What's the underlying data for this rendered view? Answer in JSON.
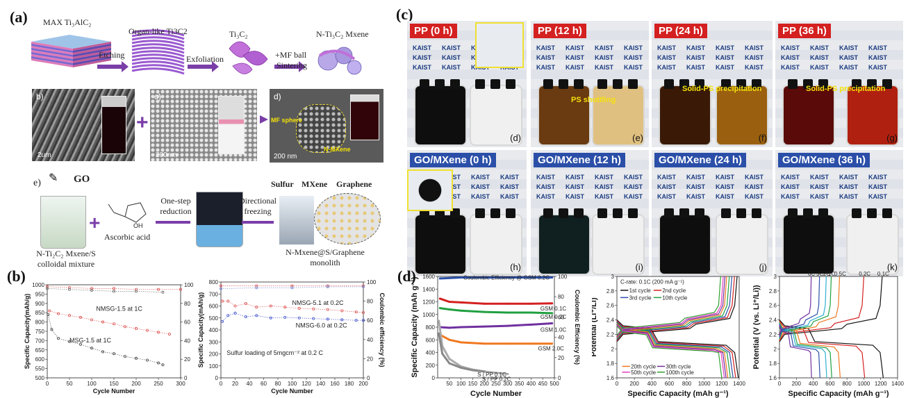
{
  "panel_labels": {
    "a": "(a)",
    "b": "(b)",
    "c": "(c)",
    "d": "(d)"
  },
  "a": {
    "steps": [
      "MAX Ti₃AlC₂",
      "Organ-like  Ti3C2",
      "Ti₃C₂",
      "N-Ti₃C₂ Mxene"
    ],
    "arrows": [
      "Etching",
      "Exfoliation",
      "+MF ball",
      "Sintering"
    ],
    "sem_labels": [
      "b)",
      "c)",
      "d)"
    ],
    "scales": [
      "2um",
      "200nm",
      "200 nm"
    ],
    "d_ann": [
      "MF sphere",
      "N-MXene"
    ],
    "e_label": "e)",
    "go": "GO",
    "legend": [
      "Sulfur",
      "MXene",
      "Graphene"
    ],
    "bottom": [
      "N-Ti₂C₂ Mxene/S colloidal mixture",
      "Ascorbic acid",
      "One-step reduction",
      "Directional freezing",
      "N-Mxene@S/Graphene monolith"
    ]
  },
  "c": {
    "top_tags": [
      "PP (0 h)",
      "PP (12 h)",
      "PP (24 h)",
      "PP (36 h)"
    ],
    "bot_tags": [
      "GO/MXene (0 h)",
      "GO/MXene (12 h)",
      "GO/MXene (24 h)",
      "GO/MXene (36 h)"
    ],
    "sub_top": [
      "(d)",
      "(e)",
      "(f)",
      "(g)"
    ],
    "sub_bot": [
      "(h)",
      "(i)",
      "(j)",
      "(k)"
    ],
    "annotations": [
      "PS shuttling",
      "Solid-PS precipitation",
      "Solid-PS precipitation"
    ],
    "kaist": "KAIST"
  },
  "chart_data": [
    {
      "id": "b-left",
      "type": "scatter",
      "xlabel": "Cycle Number",
      "ylabel": "Specific Capacity(mAh/g)",
      "y2label": "Coulombic efficiency",
      "xlim": [
        0,
        300
      ],
      "ylim": [
        500,
        1000
      ],
      "y2lim": [
        0,
        100
      ],
      "xticks": [
        0,
        50,
        100,
        150,
        200,
        250,
        300
      ],
      "yticks": [
        500,
        550,
        600,
        650,
        700,
        750,
        800,
        850,
        900,
        950,
        1000
      ],
      "y2ticks": [
        0,
        20,
        40,
        60,
        80,
        100
      ],
      "series": [
        {
          "name": "NMSG-1.5 at 1C",
          "color": "#e06060",
          "x": [
            5,
            25,
            50,
            75,
            100,
            125,
            150,
            175,
            200,
            225,
            250,
            275
          ],
          "y": [
            860,
            845,
            835,
            825,
            812,
            800,
            790,
            775,
            765,
            755,
            745,
            735
          ]
        },
        {
          "name": "MSG-1.5 at 1C",
          "color": "#555555",
          "x": [
            2,
            10,
            25,
            50,
            75,
            100,
            125,
            150,
            175,
            200,
            225,
            250,
            260
          ],
          "y": [
            840,
            760,
            712,
            695,
            680,
            660,
            640,
            630,
            615,
            605,
            595,
            580,
            570
          ]
        },
        {
          "name": "",
          "color": "#e06060",
          "x": [
            0,
            50,
            100,
            150,
            200,
            250,
            300
          ],
          "y": [
            98,
            97,
            96,
            96,
            95,
            95,
            95
          ]
        },
        {
          "name": "",
          "color": "#777777",
          "x": [
            0,
            50,
            100,
            150,
            200,
            260
          ],
          "y": [
            96,
            95,
            94,
            93,
            93,
            92
          ]
        }
      ]
    },
    {
      "id": "b-right",
      "type": "scatter",
      "xlabel": "Cycle Number",
      "ylabel": "Specific Capacity(mAh/g)",
      "y2label": "Coulombic efficiency (%)",
      "annotation": "Sulfur loading of 5mgcm⁻² at 0.2 C",
      "xlim": [
        0,
        200
      ],
      "ylim": [
        0,
        800
      ],
      "y2lim": [
        0,
        100
      ],
      "xticks": [
        0,
        20,
        40,
        60,
        80,
        100,
        120,
        140,
        160,
        180,
        200
      ],
      "yticks": [
        0,
        100,
        200,
        300,
        400,
        500,
        600,
        700,
        800
      ],
      "y2ticks": [
        0,
        20,
        40,
        60,
        80,
        100
      ],
      "series": [
        {
          "name": "NMSG-5.1 at 0.2C",
          "color": "#e06060",
          "x": [
            2,
            10,
            20,
            35,
            50,
            70,
            90,
            110,
            130,
            150,
            170,
            190,
            200
          ],
          "y": [
            640,
            640,
            600,
            620,
            590,
            600,
            590,
            580,
            575,
            570,
            560,
            550,
            545
          ]
        },
        {
          "name": "NMSG-6.0 at 0.2C",
          "color": "#5060d0",
          "x": [
            2,
            10,
            20,
            35,
            50,
            70,
            90,
            110,
            130,
            150,
            170,
            190,
            200
          ],
          "y": [
            470,
            520,
            540,
            510,
            520,
            500,
            505,
            500,
            495,
            490,
            485,
            480,
            480
          ]
        },
        {
          "name": "",
          "color": "#e06060",
          "x": [
            0,
            50,
            100,
            150,
            200
          ],
          "y": [
            96,
            96,
            96,
            96,
            96
          ]
        },
        {
          "name": "",
          "color": "#8090d0",
          "x": [
            0,
            50,
            100,
            150,
            200
          ],
          "y": [
            93,
            94,
            94,
            95,
            95
          ]
        }
      ]
    },
    {
      "id": "d-1",
      "type": "scatter",
      "xlabel": "Cycle Number",
      "ylabel": "Specific Capacity (mAh g⁻¹)",
      "y2label": "Coulombic Efficiency (%)",
      "legend": "Coulombic Efficiency @ GSM 0.2C",
      "xlim": [
        0,
        500
      ],
      "ylim": [
        0,
        1600
      ],
      "y2lim": [
        0,
        100
      ],
      "xticks": [
        50,
        100,
        150,
        200,
        250,
        300,
        350,
        400,
        450,
        500
      ],
      "yticks": [
        0,
        200,
        400,
        600,
        800,
        1000,
        1200,
        1400,
        1600
      ],
      "y2ticks": [
        0,
        20,
        40,
        60,
        80,
        100
      ],
      "series": [
        {
          "name": "GSM 0.1C",
          "color": "#d42020",
          "x": [
            10,
            50,
            100,
            200,
            300,
            400,
            490
          ],
          "y": [
            1250,
            1200,
            1190,
            1170,
            1170,
            1170,
            1175
          ]
        },
        {
          "name": "GSM 0.2C",
          "color": "#20a040",
          "x": [
            10,
            50,
            100,
            200,
            300,
            400,
            490
          ],
          "y": [
            1100,
            1080,
            1060,
            1040,
            1030,
            1030,
            1020
          ]
        },
        {
          "name": "GSM 1.0C",
          "color": "#7030a0",
          "x": [
            10,
            50,
            100,
            200,
            300,
            400,
            490
          ],
          "y": [
            800,
            790,
            800,
            810,
            820,
            840,
            860
          ]
        },
        {
          "name": "GSM 2.0C",
          "color": "#f07820",
          "x": [
            10,
            50,
            100,
            200,
            300,
            400,
            490
          ],
          "y": [
            680,
            600,
            560,
            540,
            540,
            540,
            540
          ]
        },
        {
          "name": "S / PP 0.1C",
          "color": "#aaaaaa",
          "x": [
            5,
            20,
            50,
            100,
            150,
            200,
            250,
            300
          ],
          "y": [
            900,
            500,
            300,
            180,
            130,
            100,
            80,
            60
          ]
        },
        {
          "name": "S / PP 0.2C",
          "color": "#888888",
          "x": [
            5,
            20,
            50,
            100,
            150,
            200
          ],
          "y": [
            700,
            380,
            230,
            160,
            120,
            100
          ]
        },
        {
          "name": "",
          "color": "#2b4fa8",
          "x": [
            10,
            100,
            200,
            300,
            400,
            490
          ],
          "y": [
            98,
            99,
            99,
            99,
            99,
            99
          ]
        }
      ]
    },
    {
      "id": "d-2",
      "type": "line",
      "xlabel": "Specific Capacity (mAh g⁻¹)",
      "ylabel": "Potential (Li⁺/Li)",
      "title": "C-rate: 0.1C (200 mA g⁻¹)",
      "xlim": [
        0,
        1400
      ],
      "ylim": [
        1.6,
        3.0
      ],
      "xticks": [
        0,
        200,
        400,
        600,
        800,
        1000,
        1200,
        1400
      ],
      "yticks": [
        1.6,
        1.8,
        2.0,
        2.2,
        2.4,
        2.6,
        2.8,
        3.0
      ],
      "series": [
        {
          "name": "1st cycle",
          "color": "#111111",
          "end": 1390
        },
        {
          "name": "2nd cycle",
          "color": "#d42020",
          "end": 1360
        },
        {
          "name": "3rd cycle",
          "color": "#2b4fa8",
          "end": 1330
        },
        {
          "name": "10th cycle",
          "color": "#20a040",
          "end": 1300
        },
        {
          "name": "20th cycle",
          "color": "#f07820",
          "end": 1270
        },
        {
          "name": "30th cycle",
          "color": "#7030a0",
          "end": 1250
        },
        {
          "name": "50th cycle",
          "color": "#e040c0",
          "end": 1230
        },
        {
          "name": "100th cycle",
          "color": "#30a030",
          "end": 1200
        }
      ]
    },
    {
      "id": "d-3",
      "type": "line",
      "xlabel": "Specific Capacity (mAh g⁻¹)",
      "ylabel": "Potential (V (vs. Li⁺/Li))",
      "xlim": [
        0,
        1400
      ],
      "ylim": [
        1.6,
        3.0
      ],
      "xticks": [
        0,
        200,
        400,
        600,
        800,
        1000,
        1200,
        1400
      ],
      "yticks": [
        1.6,
        1.8,
        2.0,
        2.2,
        2.4,
        2.6,
        2.8,
        3.0
      ],
      "series": [
        {
          "name": "0.1C",
          "color": "#111111",
          "end": 1230
        },
        {
          "name": "0.2C",
          "color": "#d42020",
          "end": 1010
        },
        {
          "name": "0.5C",
          "color": "#f07820",
          "end": 720
        },
        {
          "name": "1C",
          "color": "#20a040",
          "end": 620
        },
        {
          "name": "2C",
          "color": "#30b0d0",
          "end": 560
        },
        {
          "name": "3C",
          "color": "#2b4fa8",
          "end": 480
        },
        {
          "name": "6C",
          "color": "#7030a0",
          "end": 380
        }
      ]
    }
  ]
}
